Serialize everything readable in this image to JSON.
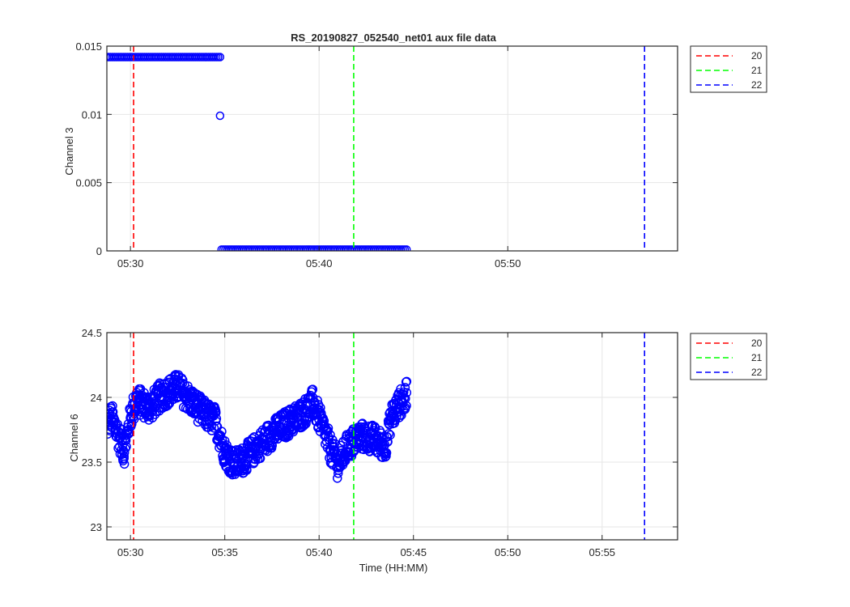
{
  "figure": {
    "background": "#ffffff"
  },
  "chart_data": [
    {
      "type": "scatter",
      "title": "RS_20190827_052540_net01 aux file data",
      "xlabel": "",
      "ylabel": "Channel 3",
      "x_unit": "HH:MM",
      "xlim": [
        "05:28:45",
        "05:59:00"
      ],
      "ylim": [
        0,
        0.015
      ],
      "xticks": [
        "05:30",
        "05:40",
        "05:50"
      ],
      "yticks": [
        0,
        0.005,
        0.01,
        0.015
      ],
      "ytick_labels": [
        "0",
        "0.005",
        "0.01",
        "0.015"
      ],
      "grid": true,
      "legend_position": "outside-top-right",
      "series": [
        {
          "marker": "circle",
          "color": "#0000ff",
          "segments": [
            {
              "x_start": "05:28:45",
              "x_end": "05:34:45",
              "y": 0.0142
            },
            {
              "x_start": "05:34:45",
              "x_end": "05:34:45",
              "y": 0.0099
            },
            {
              "x_start": "05:34:50",
              "x_end": "05:44:40",
              "y": 0.0001
            }
          ]
        }
      ],
      "markers": [
        {
          "label": "20",
          "time": "05:30:10",
          "color": "#ff0000"
        },
        {
          "label": "21",
          "time": "05:41:50",
          "color": "#00ff00"
        },
        {
          "label": "22",
          "time": "05:57:15",
          "color": "#0000ff"
        }
      ],
      "legend": [
        "20",
        "21",
        "22"
      ]
    },
    {
      "type": "scatter",
      "title": "",
      "xlabel": "Time (HH:MM)",
      "ylabel": "Channel 6",
      "x_unit": "HH:MM",
      "xlim": [
        "05:28:45",
        "05:59:00"
      ],
      "ylim": [
        22.9,
        24.5
      ],
      "xticks": [
        "05:30",
        "05:35",
        "05:40",
        "05:45",
        "05:50",
        "05:55"
      ],
      "yticks": [
        23,
        23.5,
        24,
        24.5
      ],
      "ytick_labels": [
        "23",
        "23.5",
        "24",
        "24.5"
      ],
      "grid": true,
      "legend_position": "outside-top-right",
      "series": [
        {
          "marker": "circle",
          "color": "#0000ff",
          "time_range": [
            "05:28:45",
            "05:44:40"
          ],
          "profile": [
            [
              "05:28:45",
              23.78
            ],
            [
              "05:29:00",
              23.85
            ],
            [
              "05:29:20",
              23.72
            ],
            [
              "05:29:40",
              23.58
            ],
            [
              "05:30:00",
              23.85
            ],
            [
              "05:30:20",
              23.98
            ],
            [
              "05:31:00",
              23.92
            ],
            [
              "05:31:40",
              24.02
            ],
            [
              "05:32:30",
              24.08
            ],
            [
              "05:33:10",
              23.98
            ],
            [
              "05:33:50",
              23.88
            ],
            [
              "05:34:30",
              23.82
            ],
            [
              "05:35:00",
              23.58
            ],
            [
              "05:35:30",
              23.48
            ],
            [
              "05:36:00",
              23.52
            ],
            [
              "05:36:45",
              23.62
            ],
            [
              "05:37:30",
              23.72
            ],
            [
              "05:38:20",
              23.8
            ],
            [
              "05:39:10",
              23.88
            ],
            [
              "05:39:40",
              23.96
            ],
            [
              "05:40:10",
              23.78
            ],
            [
              "05:40:40",
              23.58
            ],
            [
              "05:41:00",
              23.48
            ],
            [
              "05:41:30",
              23.62
            ],
            [
              "05:42:10",
              23.7
            ],
            [
              "05:42:50",
              23.68
            ],
            [
              "05:43:30",
              23.62
            ],
            [
              "05:43:50",
              23.85
            ],
            [
              "05:44:15",
              23.95
            ],
            [
              "05:44:40",
              24.02
            ]
          ]
        }
      ],
      "markers": [
        {
          "label": "20",
          "time": "05:30:10",
          "color": "#ff0000"
        },
        {
          "label": "21",
          "time": "05:41:50",
          "color": "#00ff00"
        },
        {
          "label": "22",
          "time": "05:57:15",
          "color": "#0000ff"
        }
      ],
      "legend": [
        "20",
        "21",
        "22"
      ]
    }
  ]
}
